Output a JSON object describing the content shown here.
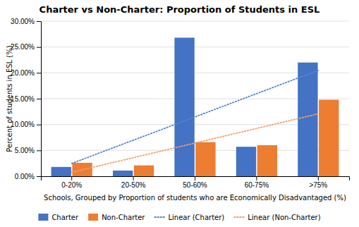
{
  "chart_data": {
    "type": "bar",
    "title": "Charter vs Non-Charter: Proportion of Students in ESL",
    "x_label": "Schools, Grouped by Proportion of students who are Economically Disadvantaged (%)",
    "y_label": "Percent of students in ESL (%)",
    "categories": [
      "0-20%",
      "20-50%",
      "50-60%",
      "60-75%",
      ">75%"
    ],
    "series": [
      {
        "name": "Charter",
        "type": "bar",
        "color": "#4472C4",
        "values": [
          1.8,
          1.1,
          26.8,
          5.7,
          22.0
        ]
      },
      {
        "name": "Non-Charter",
        "type": "bar",
        "color": "#ED7D31",
        "values": [
          2.6,
          2.1,
          6.6,
          6.0,
          14.8
        ]
      },
      {
        "name": "Linear (Charter)",
        "type": "line",
        "line_style": "dotted",
        "color": "#5585C8",
        "values": [
          2.48,
          6.98,
          11.48,
          15.98,
          20.48
        ]
      },
      {
        "name": "Linear (Non-Charter)",
        "type": "line",
        "line_style": "dotted",
        "color": "#F0A070",
        "values": [
          0.76,
          3.59,
          6.42,
          9.25,
          12.08
        ]
      }
    ],
    "ylim": [
      0,
      30
    ],
    "yticks": [
      {
        "value": 0,
        "label": "0.00%"
      },
      {
        "value": 5,
        "label": "5.00%"
      },
      {
        "value": 10,
        "label": "10.00%"
      },
      {
        "value": 15,
        "label": "15.00%"
      },
      {
        "value": 20,
        "label": "20.00%"
      },
      {
        "value": 25,
        "label": "25.00%"
      },
      {
        "value": 30,
        "label": "30.00%"
      }
    ],
    "grid": true,
    "legend": "bottom"
  }
}
